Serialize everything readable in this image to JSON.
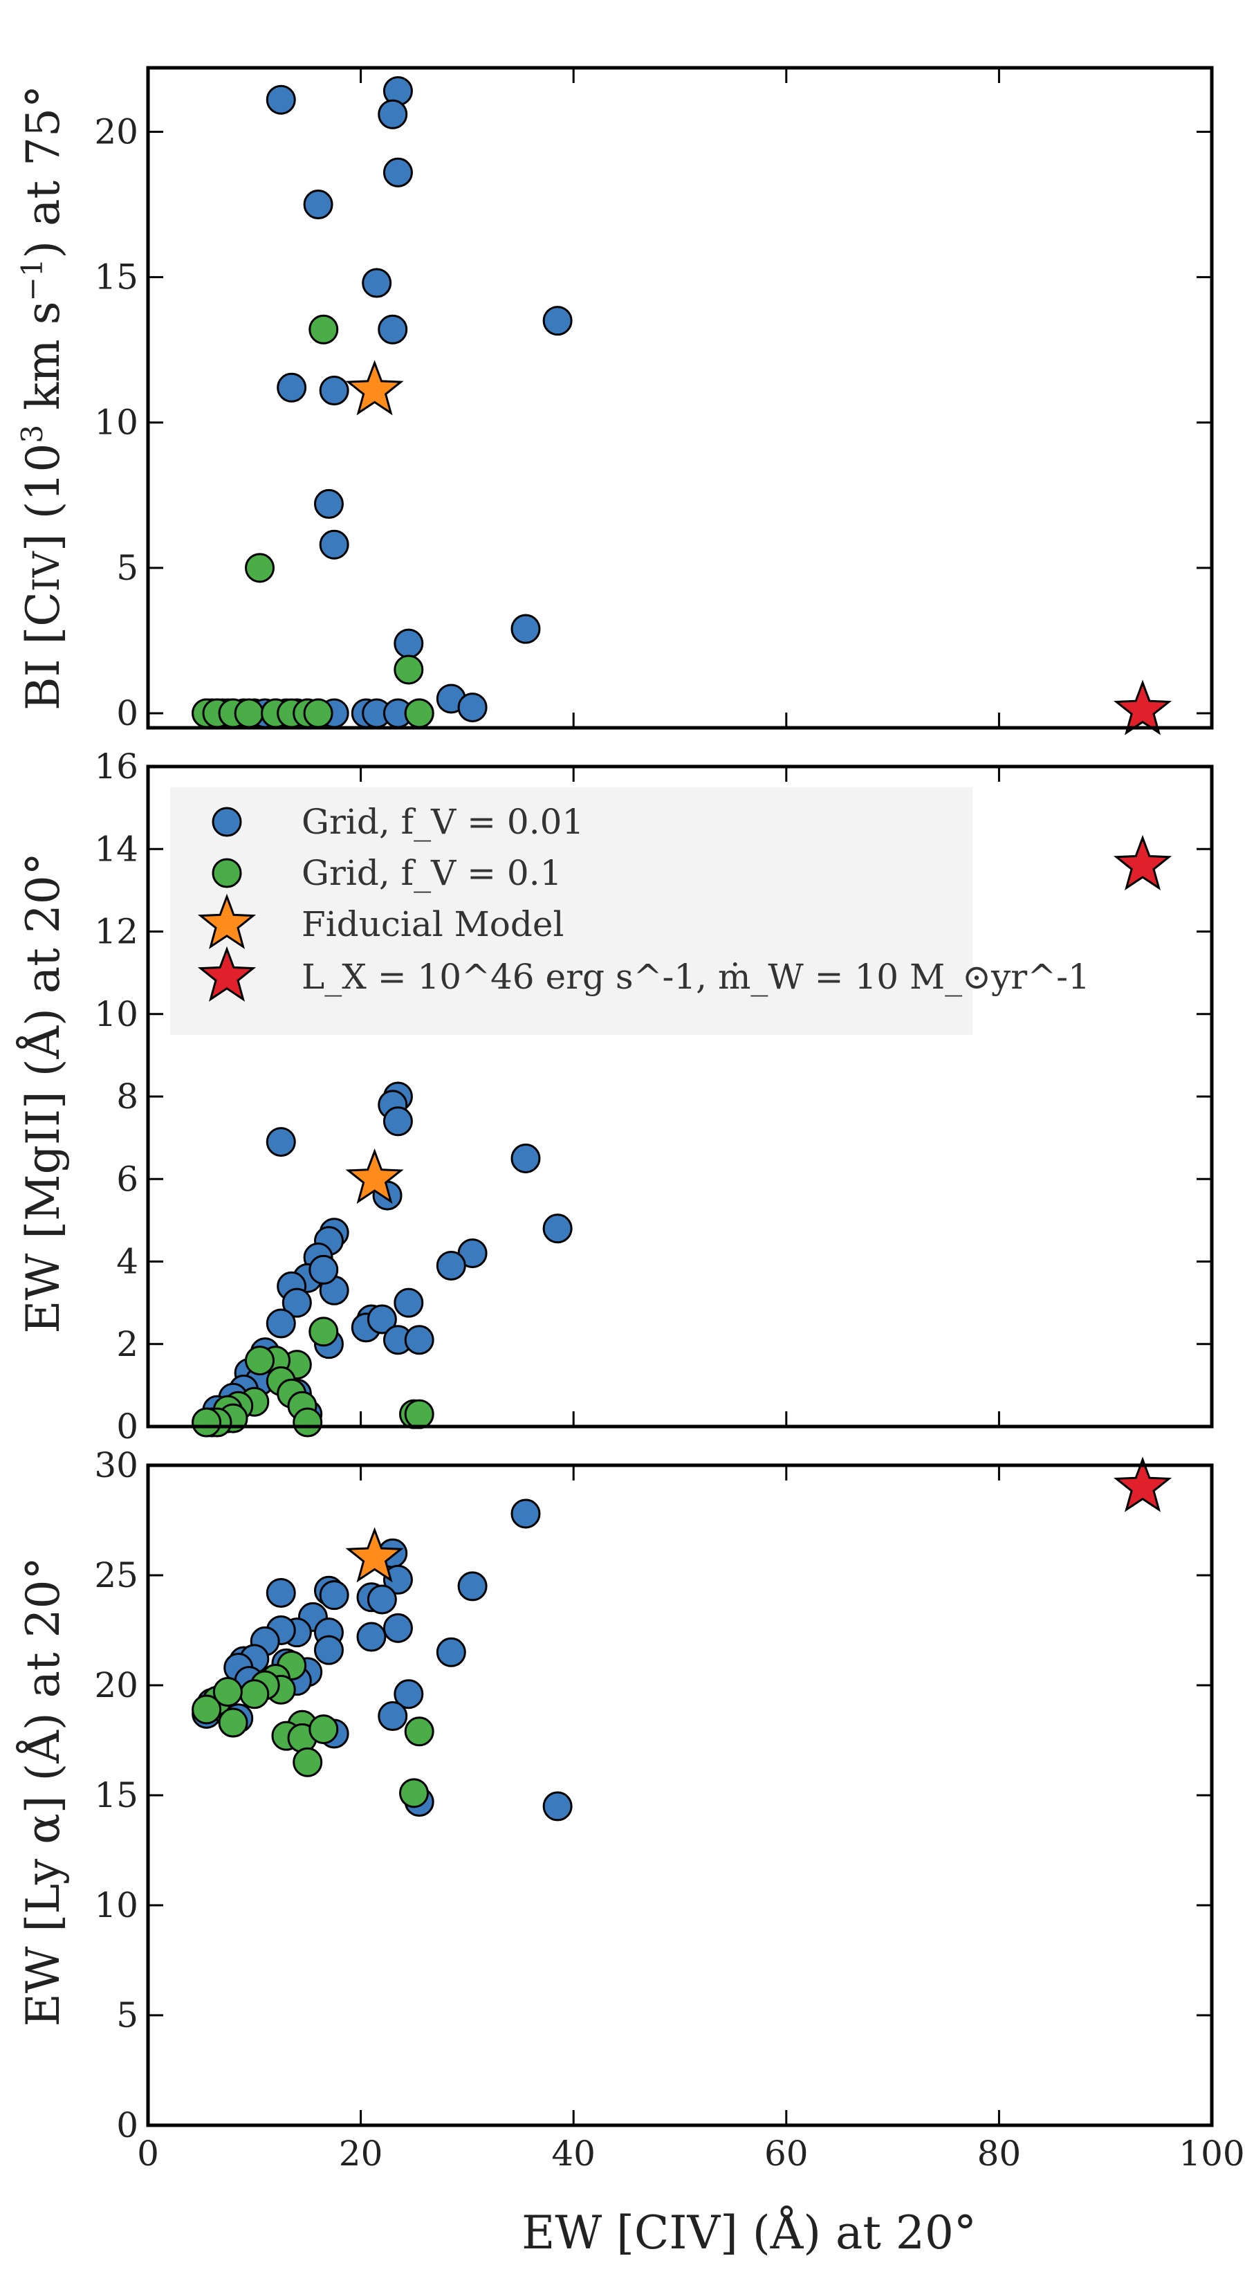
{
  "colors": {
    "grid_fv001": "#3a7abd",
    "grid_fv01": "#4aad48",
    "fiducial": "#ff8c1a",
    "bright": "#e0202a"
  },
  "chart_data": [
    {
      "type": "scatter",
      "ylabel": "BI [CIV] (10³ km s⁻¹) at 75°",
      "xlim": [
        0,
        100
      ],
      "ylim": [
        -0.5,
        22.2
      ],
      "yticks": [
        "0",
        "5",
        "10",
        "15",
        "20"
      ],
      "series": [
        {
          "name": "Grid, f_V = 0.01",
          "points": [
            [
              12.5,
              21.1
            ],
            [
              23.5,
              21.4
            ],
            [
              23,
              20.6
            ],
            [
              23.5,
              18.6
            ],
            [
              16,
              17.5
            ],
            [
              21.5,
              14.8
            ],
            [
              23,
              13.2
            ],
            [
              38.5,
              13.5
            ],
            [
              13.5,
              11.2
            ],
            [
              17.5,
              11.1
            ],
            [
              17,
              7.2
            ],
            [
              17.5,
              5.8
            ],
            [
              24.5,
              2.4
            ],
            [
              35.5,
              2.9
            ],
            [
              28.5,
              0.5
            ],
            [
              30.5,
              0.2
            ],
            [
              5.5,
              0
            ],
            [
              6,
              0
            ],
            [
              6.5,
              0
            ],
            [
              7,
              0
            ],
            [
              7.5,
              0
            ],
            [
              8,
              0
            ],
            [
              9,
              0
            ],
            [
              10,
              0
            ],
            [
              11,
              0
            ],
            [
              12,
              0
            ],
            [
              13,
              0
            ],
            [
              14,
              0
            ],
            [
              15,
              0
            ],
            [
              16,
              0
            ],
            [
              17.5,
              0
            ],
            [
              20.5,
              0
            ],
            [
              21.5,
              0
            ],
            [
              23.5,
              0
            ],
            [
              25.5,
              0
            ]
          ]
        },
        {
          "name": "Grid, f_V = 0.1",
          "points": [
            [
              16.5,
              13.2
            ],
            [
              10.5,
              5.0
            ],
            [
              24.5,
              1.5
            ],
            [
              5.5,
              0
            ],
            [
              6.5,
              0
            ],
            [
              8,
              0
            ],
            [
              9.5,
              0
            ],
            [
              12,
              0
            ],
            [
              13.5,
              0
            ],
            [
              15,
              0
            ],
            [
              16,
              0
            ],
            [
              25.5,
              0
            ]
          ]
        },
        {
          "name": "Fiducial Model",
          "points": [
            [
              21.3,
              11.1
            ]
          ]
        },
        {
          "name": "L_X = 10^46 erg s^-1, ṁ_W = 10 M_⊙yr^-1",
          "points": [
            [
              93.5,
              0.1
            ]
          ]
        }
      ]
    },
    {
      "type": "scatter",
      "ylabel": "EW [MgII] (Å) at 20°",
      "xlim": [
        0,
        100
      ],
      "ylim": [
        0,
        16
      ],
      "yticks": [
        "0",
        "2",
        "4",
        "6",
        "8",
        "10",
        "12",
        "14",
        "16"
      ],
      "series": [
        {
          "name": "Grid, f_V = 0.01",
          "points": [
            [
              12.5,
              6.9
            ],
            [
              23.5,
              8.0
            ],
            [
              23,
              7.8
            ],
            [
              23.5,
              7.4
            ],
            [
              22.5,
              5.6
            ],
            [
              35.5,
              6.5
            ],
            [
              38.5,
              4.8
            ],
            [
              30.5,
              4.2
            ],
            [
              28.5,
              3.9
            ],
            [
              17.5,
              4.7
            ],
            [
              17,
              4.5
            ],
            [
              16,
              4.1
            ],
            [
              15,
              3.6
            ],
            [
              13.5,
              3.4
            ],
            [
              17.5,
              3.3
            ],
            [
              16.5,
              3.8
            ],
            [
              14,
              3.0
            ],
            [
              24.5,
              3.0
            ],
            [
              21,
              2.6
            ],
            [
              20.5,
              2.4
            ],
            [
              22,
              2.6
            ],
            [
              12.5,
              2.5
            ],
            [
              23.5,
              2.1
            ],
            [
              25.5,
              2.1
            ],
            [
              17,
              2.0
            ],
            [
              11,
              1.8
            ],
            [
              9.5,
              1.3
            ],
            [
              10.5,
              1.1
            ],
            [
              9,
              0.9
            ],
            [
              8,
              0.7
            ],
            [
              6.5,
              0.4
            ],
            [
              5.5,
              0.1
            ],
            [
              6,
              0.1
            ],
            [
              7.5,
              0.2
            ],
            [
              14,
              0.8
            ],
            [
              15,
              0.3
            ]
          ]
        },
        {
          "name": "Grid, f_V = 0.1",
          "points": [
            [
              16.5,
              2.3
            ],
            [
              14,
              1.5
            ],
            [
              12,
              1.6
            ],
            [
              10.5,
              1.6
            ],
            [
              12.5,
              1.1
            ],
            [
              13.5,
              0.8
            ],
            [
              10,
              0.6
            ],
            [
              8.5,
              0.5
            ],
            [
              7.5,
              0.4
            ],
            [
              8,
              0.2
            ],
            [
              6.5,
              0.1
            ],
            [
              5.5,
              0.1
            ],
            [
              14.5,
              0.5
            ],
            [
              15,
              0.1
            ],
            [
              25,
              0.3
            ],
            [
              25.5,
              0.3
            ]
          ]
        },
        {
          "name": "Fiducial Model",
          "points": [
            [
              21.3,
              6.0
            ]
          ]
        },
        {
          "name": "L_X = 10^46 erg s^-1, ṁ_W = 10 M_⊙yr^-1",
          "points": [
            [
              93.5,
              13.6
            ]
          ]
        }
      ]
    },
    {
      "type": "scatter",
      "xlabel": "EW [CIV] (Å) at 20°",
      "ylabel": "EW [Ly α] (Å) at 20°",
      "xlim": [
        0,
        100
      ],
      "ylim": [
        0,
        30
      ],
      "xticks": [
        "0",
        "20",
        "40",
        "60",
        "80",
        "100"
      ],
      "yticks": [
        "0",
        "5",
        "10",
        "15",
        "20",
        "25",
        "30"
      ],
      "series": [
        {
          "name": "Grid, f_V = 0.01",
          "points": [
            [
              35.5,
              27.8
            ],
            [
              23,
              26.0
            ],
            [
              23.5,
              24.8
            ],
            [
              30.5,
              24.5
            ],
            [
              12.5,
              24.2
            ],
            [
              17,
              24.3
            ],
            [
              17.5,
              24.1
            ],
            [
              21,
              24.0
            ],
            [
              22,
              23.9
            ],
            [
              15.5,
              23.1
            ],
            [
              14,
              22.4
            ],
            [
              12.5,
              22.5
            ],
            [
              11,
              22.0
            ],
            [
              17,
              22.4
            ],
            [
              21,
              22.2
            ],
            [
              23.5,
              22.6
            ],
            [
              28.5,
              21.5
            ],
            [
              17,
              21.6
            ],
            [
              9,
              21.1
            ],
            [
              10,
              21.2
            ],
            [
              8.5,
              20.8
            ],
            [
              13,
              21.0
            ],
            [
              15,
              20.6
            ],
            [
              9.5,
              20.2
            ],
            [
              12,
              20.3
            ],
            [
              14,
              20.2
            ],
            [
              6,
              19.2
            ],
            [
              5.5,
              18.7
            ],
            [
              7,
              19.0
            ],
            [
              8,
              18.3
            ],
            [
              8.5,
              18.5
            ],
            [
              24.5,
              19.6
            ],
            [
              23,
              18.6
            ],
            [
              17.5,
              17.8
            ],
            [
              38.5,
              14.5
            ],
            [
              25.5,
              14.7
            ]
          ]
        },
        {
          "name": "Grid, f_V = 0.1",
          "points": [
            [
              13.5,
              20.9
            ],
            [
              12,
              20.3
            ],
            [
              12.5,
              19.8
            ],
            [
              11,
              20.0
            ],
            [
              10,
              19.6
            ],
            [
              6.5,
              19.3
            ],
            [
              7.5,
              19.7
            ],
            [
              5.5,
              18.9
            ],
            [
              8,
              18.3
            ],
            [
              14.5,
              18.2
            ],
            [
              13,
              17.7
            ],
            [
              14.5,
              17.6
            ],
            [
              16.5,
              18.0
            ],
            [
              15,
              16.5
            ],
            [
              25.5,
              17.9
            ],
            [
              25,
              15.1
            ]
          ]
        },
        {
          "name": "Fiducial Model",
          "points": [
            [
              21.3,
              25.8
            ]
          ]
        },
        {
          "name": "L_X = 10^46 erg s^-1, ṁ_W = 10 M_⊙yr^-1",
          "points": [
            [
              93.5,
              29.0
            ]
          ]
        }
      ]
    }
  ]
}
